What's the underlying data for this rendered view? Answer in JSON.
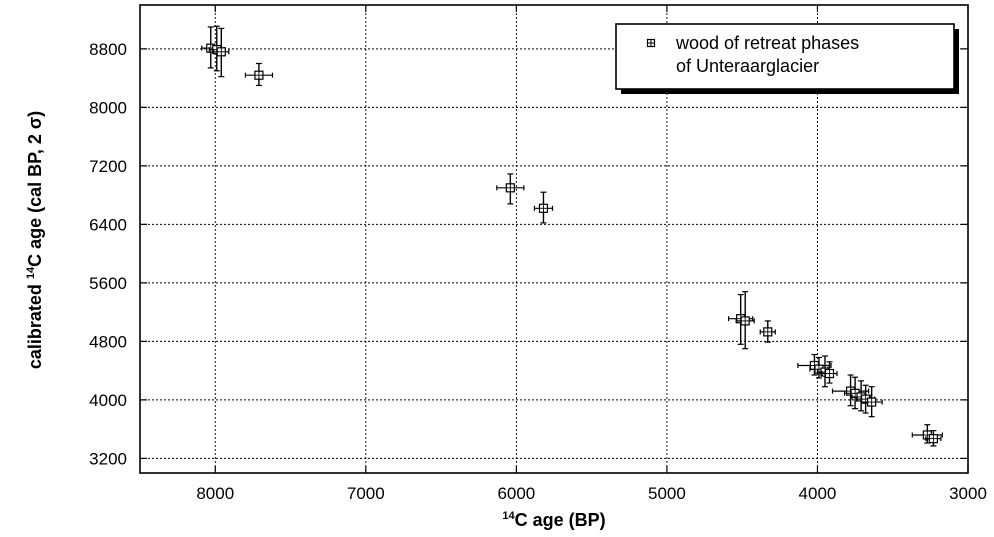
{
  "chart_data": {
    "type": "scatter",
    "xlabel": {
      "sup": "14",
      "text": "C  age  (BP)"
    },
    "ylabel": {
      "prefix": "calibrated  ",
      "sup": "14",
      "text": "C age (cal BP, 2 σ)"
    },
    "xlim": [
      8500,
      3000
    ],
    "ylim": [
      3000,
      9400
    ],
    "x_ticks": [
      8000,
      7000,
      6000,
      5000,
      4000,
      3000
    ],
    "y_ticks": [
      3200,
      4000,
      4800,
      5600,
      6400,
      7200,
      8000,
      8800
    ],
    "grid": true,
    "legend_position": "top-right",
    "series": [
      {
        "name": "wood of retreat phases of Unteraarglacier",
        "legend_lines": [
          "wood of retreat phases",
          "of Unteraarglacier"
        ],
        "points": [
          {
            "x": 8030,
            "y": 8810,
            "xerr": 60,
            "yerr_low": 8540,
            "yerr_high": 9100
          },
          {
            "x": 7990,
            "y": 8790,
            "xerr": 50,
            "yerr_low": 8500,
            "yerr_high": 9110
          },
          {
            "x": 7960,
            "y": 8760,
            "xerr": 50,
            "yerr_low": 8420,
            "yerr_high": 9080
          },
          {
            "x": 7710,
            "y": 8440,
            "xerr": 90,
            "yerr_low": 8300,
            "yerr_high": 8600
          },
          {
            "x": 6040,
            "y": 6900,
            "xerr": 90,
            "yerr_low": 6680,
            "yerr_high": 7090
          },
          {
            "x": 5820,
            "y": 6620,
            "xerr": 60,
            "yerr_low": 6420,
            "yerr_high": 6840
          },
          {
            "x": 4510,
            "y": 5110,
            "xerr": 80,
            "yerr_low": 4760,
            "yerr_high": 5440
          },
          {
            "x": 4480,
            "y": 5080,
            "xerr": 60,
            "yerr_low": 4700,
            "yerr_high": 5480
          },
          {
            "x": 4330,
            "y": 4930,
            "xerr": 50,
            "yerr_low": 4790,
            "yerr_high": 5080
          },
          {
            "x": 4020,
            "y": 4470,
            "xerr": 110,
            "yerr_low": 4340,
            "yerr_high": 4620
          },
          {
            "x": 3990,
            "y": 4420,
            "xerr": 60,
            "yerr_low": 4300,
            "yerr_high": 4580
          },
          {
            "x": 3950,
            "y": 4380,
            "xerr": 50,
            "yerr_low": 4180,
            "yerr_high": 4600
          },
          {
            "x": 3920,
            "y": 4360,
            "xerr": 50,
            "yerr_low": 4230,
            "yerr_high": 4520
          },
          {
            "x": 3780,
            "y": 4120,
            "xerr": 120,
            "yerr_low": 3920,
            "yerr_high": 4340
          },
          {
            "x": 3750,
            "y": 4090,
            "xerr": 70,
            "yerr_low": 3880,
            "yerr_high": 4310
          },
          {
            "x": 3710,
            "y": 4040,
            "xerr": 60,
            "yerr_low": 3850,
            "yerr_high": 4260
          },
          {
            "x": 3680,
            "y": 4010,
            "xerr": 60,
            "yerr_low": 3820,
            "yerr_high": 4200
          },
          {
            "x": 3640,
            "y": 3970,
            "xerr": 70,
            "yerr_low": 3770,
            "yerr_high": 4180
          },
          {
            "x": 3270,
            "y": 3520,
            "xerr": 100,
            "yerr_low": 3410,
            "yerr_high": 3660
          },
          {
            "x": 3230,
            "y": 3470,
            "xerr": 50,
            "yerr_low": 3370,
            "yerr_high": 3580
          }
        ]
      }
    ]
  }
}
